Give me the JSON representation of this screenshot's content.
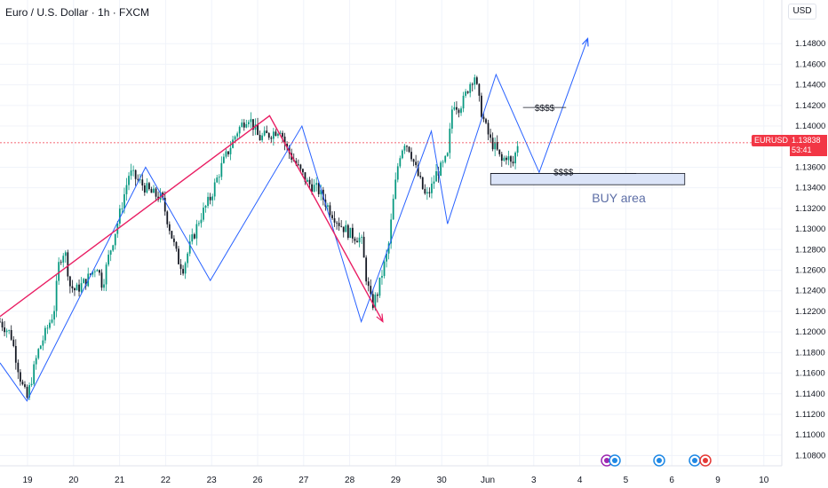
{
  "header": {
    "title": "Euro / U.S. Dollar · 1h · FXCM",
    "currency": "USD"
  },
  "price_axis": {
    "symbol": "EURUSD",
    "last_price": "1.13838",
    "countdown": "53:41"
  },
  "annotations": {
    "liquidity_upper": "$$$$",
    "liquidity_lower": "$$$$",
    "buy_area": "BUY area"
  },
  "colors": {
    "up": "#089981",
    "down": "#131722",
    "wave_line": "#2962ff",
    "trend_line": "#e91e63",
    "last_price": "#f23645",
    "buy_area_fill": "#dbe4f8",
    "label_text": "#5d6ea6"
  },
  "chart_data": {
    "type": "candlestick",
    "symbol": "EURUSD",
    "timeframe": "1h",
    "ylim": [
      1.107,
      1.15
    ],
    "y_ticks": [
      "1.14800",
      "1.14600",
      "1.14400",
      "1.14200",
      "1.14000",
      "1.13600",
      "1.13400",
      "1.13200",
      "1.13000",
      "1.12800",
      "1.12600",
      "1.12400",
      "1.12200",
      "1.12000",
      "1.11800",
      "1.11600",
      "1.11400",
      "1.11200",
      "1.11000",
      "1.10800"
    ],
    "x_ticks": [
      "19",
      "20",
      "21",
      "22",
      "23",
      "26",
      "27",
      "28",
      "29",
      "30",
      "Jun",
      "3",
      "4",
      "5",
      "6",
      "9",
      "10"
    ],
    "price_path": [
      [
        0,
        1.121
      ],
      [
        2,
        1.1198
      ],
      [
        4,
        1.115
      ],
      [
        5,
        1.1135
      ],
      [
        7,
        1.118
      ],
      [
        10,
        1.122
      ],
      [
        11,
        1.127
      ],
      [
        12,
        1.128
      ],
      [
        13,
        1.1245
      ],
      [
        14,
        1.124
      ],
      [
        16,
        1.125
      ],
      [
        18,
        1.1265
      ],
      [
        19,
        1.1245
      ],
      [
        20,
        1.127
      ],
      [
        22,
        1.131
      ],
      [
        24,
        1.1355
      ],
      [
        26,
        1.1345
      ],
      [
        28,
        1.1335
      ],
      [
        30,
        1.133
      ],
      [
        31,
        1.131
      ],
      [
        32,
        1.129
      ],
      [
        33,
        1.127
      ],
      [
        34,
        1.1262
      ],
      [
        35,
        1.128
      ],
      [
        37,
        1.131
      ],
      [
        39,
        1.133
      ],
      [
        41,
        1.136
      ],
      [
        44,
        1.1395
      ],
      [
        46,
        1.141
      ],
      [
        47,
        1.14
      ],
      [
        48,
        1.1388
      ],
      [
        50,
        1.1392
      ],
      [
        52,
        1.1398
      ],
      [
        53,
        1.138
      ],
      [
        55,
        1.1362
      ],
      [
        57,
        1.1345
      ],
      [
        59,
        1.1338
      ],
      [
        61,
        1.132
      ],
      [
        63,
        1.1305
      ],
      [
        65,
        1.1295
      ],
      [
        67,
        1.129
      ],
      [
        68,
        1.125
      ],
      [
        69,
        1.1225
      ],
      [
        70,
        1.1238
      ],
      [
        71,
        1.126
      ],
      [
        72,
        1.128
      ],
      [
        73,
        1.133
      ],
      [
        74,
        1.137
      ],
      [
        75,
        1.1385
      ],
      [
        76,
        1.1378
      ],
      [
        77,
        1.136
      ],
      [
        78,
        1.1345
      ],
      [
        79,
        1.133
      ],
      [
        80,
        1.134
      ],
      [
        81,
        1.1355
      ],
      [
        82,
        1.136
      ],
      [
        83,
        1.137
      ],
      [
        84,
        1.1425
      ],
      [
        85,
        1.1418
      ],
      [
        86,
        1.1425
      ],
      [
        87,
        1.144
      ],
      [
        88,
        1.145
      ],
      [
        89,
        1.142
      ],
      [
        90,
        1.14
      ],
      [
        91,
        1.1385
      ],
      [
        92,
        1.1378
      ],
      [
        93,
        1.1365
      ],
      [
        94,
        1.1372
      ],
      [
        95,
        1.136
      ],
      [
        96,
        1.1383
      ]
    ],
    "wave_lines": [
      {
        "name": "wave",
        "points": [
          [
            0,
            1.117
          ],
          [
            5,
            1.1133
          ],
          [
            27,
            1.136
          ],
          [
            39,
            1.125
          ],
          [
            56,
            1.14
          ],
          [
            67,
            1.121
          ],
          [
            80,
            1.1395
          ],
          [
            83,
            1.1305
          ],
          [
            92,
            1.145
          ],
          [
            100,
            1.1355
          ],
          [
            109,
            1.1485
          ]
        ]
      },
      {
        "name": "trend",
        "points": [
          [
            0,
            1.1215
          ],
          [
            50,
            1.141
          ],
          [
            71,
            1.121
          ]
        ]
      }
    ],
    "x_domain": [
      0,
      145
    ],
    "buy_zone": {
      "x0": 91,
      "x1": 127,
      "y0": 1.1343,
      "y1": 1.1354
    },
    "liquidity_levels": [
      {
        "label": "$$$$",
        "y": 1.1418,
        "x0": 97,
        "x1": 105
      },
      {
        "label": "$$$$",
        "y": 1.1354,
        "x0": 91,
        "x1": 118
      }
    ],
    "last_price": 1.13838,
    "grid": true
  }
}
